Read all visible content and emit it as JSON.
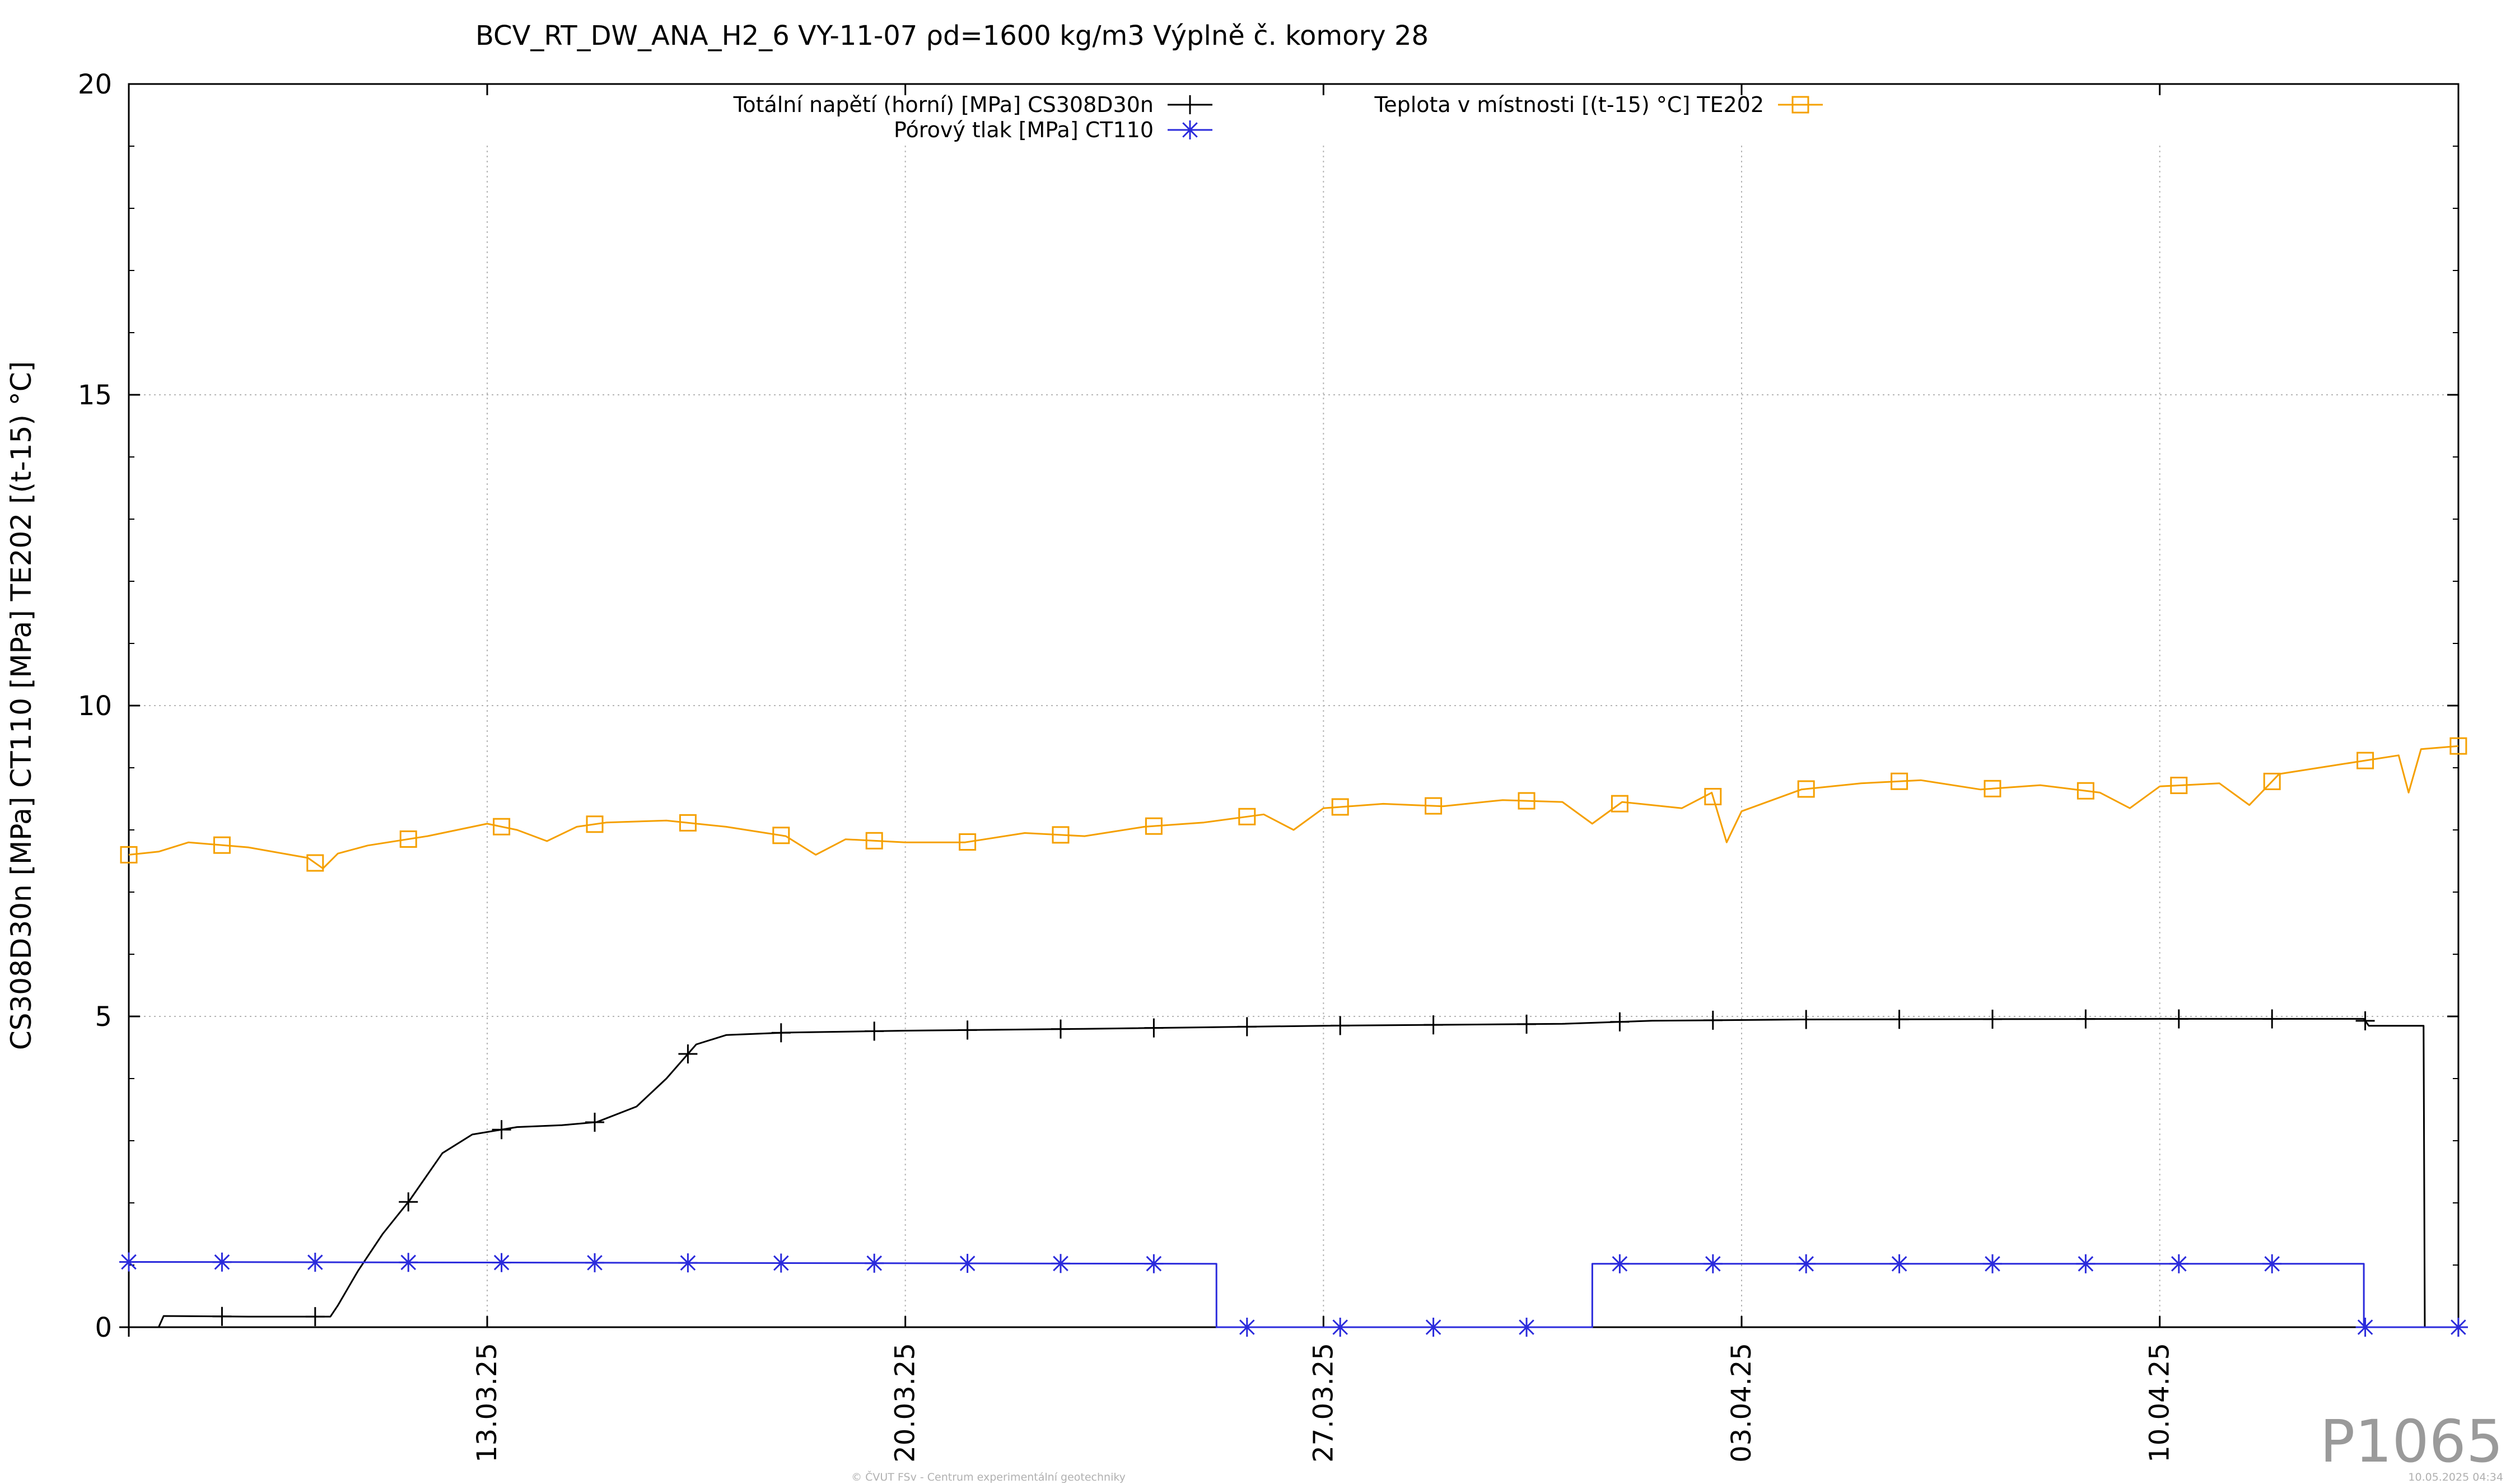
{
  "chart_data": {
    "type": "line",
    "title": "BCV_RT_DW_ANA_H2_6 VY-11-07 ρd=1600 kg/m3 Výplně č. komory 28",
    "ylabel": "CS308D30n [MPa] CT110 [MPa] TE202 [(t-15) °C]",
    "xlabel": "",
    "x_range": [
      "07.03.25",
      "14.04.25"
    ],
    "ylim": [
      0,
      20
    ],
    "y_ticks": [
      0,
      5,
      10,
      15,
      20
    ],
    "x_ticks": [
      {
        "value": "13.03.25",
        "label": "13.03.25"
      },
      {
        "value": "20.03.25",
        "label": "20.03.25"
      },
      {
        "value": "27.03.25",
        "label": "27.03.25"
      },
      {
        "value": "03.04.25",
        "label": "03.04.25"
      },
      {
        "value": "10.04.25",
        "label": "10.04.25"
      }
    ],
    "grid": true,
    "legend_placement": "top",
    "series": [
      {
        "name": "Totální napětí (horní) [MPa] CS308D30n",
        "color": "#000000",
        "marker": "plus",
        "points": [
          [
            "07.03.25",
            0.0
          ],
          [
            "07.03.25 12:00",
            0.0
          ],
          [
            "07.03.25 14:00",
            0.18
          ],
          [
            "09.03.25",
            0.17
          ],
          [
            "10.03.25 09:00",
            0.17
          ],
          [
            "10.03.25 12:00",
            0.35
          ],
          [
            "10.03.25 20:00",
            0.9
          ],
          [
            "11.03.25 06:00",
            1.5
          ],
          [
            "11.03.25 17:00",
            2.05
          ],
          [
            "12.03.25 06:00",
            2.8
          ],
          [
            "12.03.25 18:00",
            3.1
          ],
          [
            "13.03.25 12:00",
            3.22
          ],
          [
            "14.03.25 06:00",
            3.25
          ],
          [
            "14.03.25 20:00",
            3.3
          ],
          [
            "15.03.25 12:00",
            3.55
          ],
          [
            "16.03.25 00:00",
            4.0
          ],
          [
            "16.03.25 12:00",
            4.55
          ],
          [
            "17.03.25 00:00",
            4.7
          ],
          [
            "18.03.25",
            4.74
          ],
          [
            "20.03.25",
            4.77
          ],
          [
            "23.03.25",
            4.8
          ],
          [
            "27.03.25",
            4.85
          ],
          [
            "31.03.25",
            4.88
          ],
          [
            "01.04.25 12:00",
            4.93
          ],
          [
            "04.04.25",
            4.95
          ],
          [
            "10.04.25",
            4.96
          ],
          [
            "13.04.25 10:00",
            4.96
          ],
          [
            "13.04.25 12:00",
            4.85
          ],
          [
            "14.04.25 10:00",
            4.85
          ],
          [
            "14.04.25 10:30",
            0.0
          ],
          [
            "14.04.25 23:59",
            0.0
          ]
        ]
      },
      {
        "name": "Pórový tlak [MPa] CT110",
        "color": "#2b2bdc",
        "marker": "star",
        "points": [
          [
            "07.03.25",
            1.05
          ],
          [
            "25.03.25 05:00",
            1.02
          ],
          [
            "25.03.25 05:01",
            0.0
          ],
          [
            "31.03.25 12:00",
            0.0
          ],
          [
            "31.03.25 12:01",
            1.02
          ],
          [
            "13.04.25 10:00",
            1.02
          ],
          [
            "13.04.25 10:01",
            0.0
          ],
          [
            "14.04.25 23:59",
            0.0
          ]
        ]
      },
      {
        "name": "Teplota v místnosti [(t-15) °C] TE202",
        "color": "#f5a000",
        "marker": "square",
        "points": [
          [
            "07.03.25",
            7.6
          ],
          [
            "07.03.25 12:00",
            7.65
          ],
          [
            "08.03.25",
            7.8
          ],
          [
            "09.03.25",
            7.72
          ],
          [
            "10.03.25",
            7.55
          ],
          [
            "10.03.25 06:00",
            7.38
          ],
          [
            "10.03.25 12:00",
            7.62
          ],
          [
            "11.03.25",
            7.75
          ],
          [
            "12.03.25",
            7.9
          ],
          [
            "13.03.25",
            8.1
          ],
          [
            "13.03.25 12:00",
            8.0
          ],
          [
            "14.03.25",
            7.82
          ],
          [
            "14.03.25 12:00",
            8.05
          ],
          [
            "15.03.25",
            8.12
          ],
          [
            "16.03.25",
            8.15
          ],
          [
            "17.03.25",
            8.05
          ],
          [
            "18.03.25",
            7.9
          ],
          [
            "18.03.25 12:00",
            7.6
          ],
          [
            "19.03.25",
            7.85
          ],
          [
            "20.03.25",
            7.8
          ],
          [
            "21.03.25",
            7.8
          ],
          [
            "22.03.25",
            7.95
          ],
          [
            "23.03.25",
            7.9
          ],
          [
            "24.03.25",
            8.05
          ],
          [
            "25.03.25",
            8.12
          ],
          [
            "26.03.25",
            8.25
          ],
          [
            "26.03.25 12:00",
            8.0
          ],
          [
            "27.03.25",
            8.35
          ],
          [
            "28.03.25",
            8.42
          ],
          [
            "29.03.25",
            8.38
          ],
          [
            "30.03.25",
            8.48
          ],
          [
            "31.03.25",
            8.45
          ],
          [
            "31.03.25 12:00",
            8.1
          ],
          [
            "01.04.25",
            8.45
          ],
          [
            "02.04.25",
            8.35
          ],
          [
            "02.04.25 12:00",
            8.6
          ],
          [
            "02.04.25 18:00",
            7.8
          ],
          [
            "03.04.25",
            8.3
          ],
          [
            "04.04.25",
            8.65
          ],
          [
            "05.04.25",
            8.75
          ],
          [
            "06.04.25",
            8.8
          ],
          [
            "07.04.25",
            8.65
          ],
          [
            "08.04.25",
            8.72
          ],
          [
            "09.04.25",
            8.6
          ],
          [
            "09.04.25 12:00",
            8.35
          ],
          [
            "10.04.25",
            8.7
          ],
          [
            "11.04.25",
            8.75
          ],
          [
            "11.04.25 12:00",
            8.4
          ],
          [
            "12.04.25",
            8.9
          ],
          [
            "13.04.25",
            9.05
          ],
          [
            "14.04.25",
            9.2
          ],
          [
            "14.04.25 04:00",
            8.6
          ],
          [
            "14.04.25 09:00",
            9.3
          ],
          [
            "14.04.25 23:59",
            9.35
          ]
        ]
      }
    ]
  },
  "watermark": "P1065",
  "footer": {
    "copyright": "© ČVUT FSv - Centrum experimentální geotechniky",
    "timestamp": "10.05.2025 04:34"
  }
}
